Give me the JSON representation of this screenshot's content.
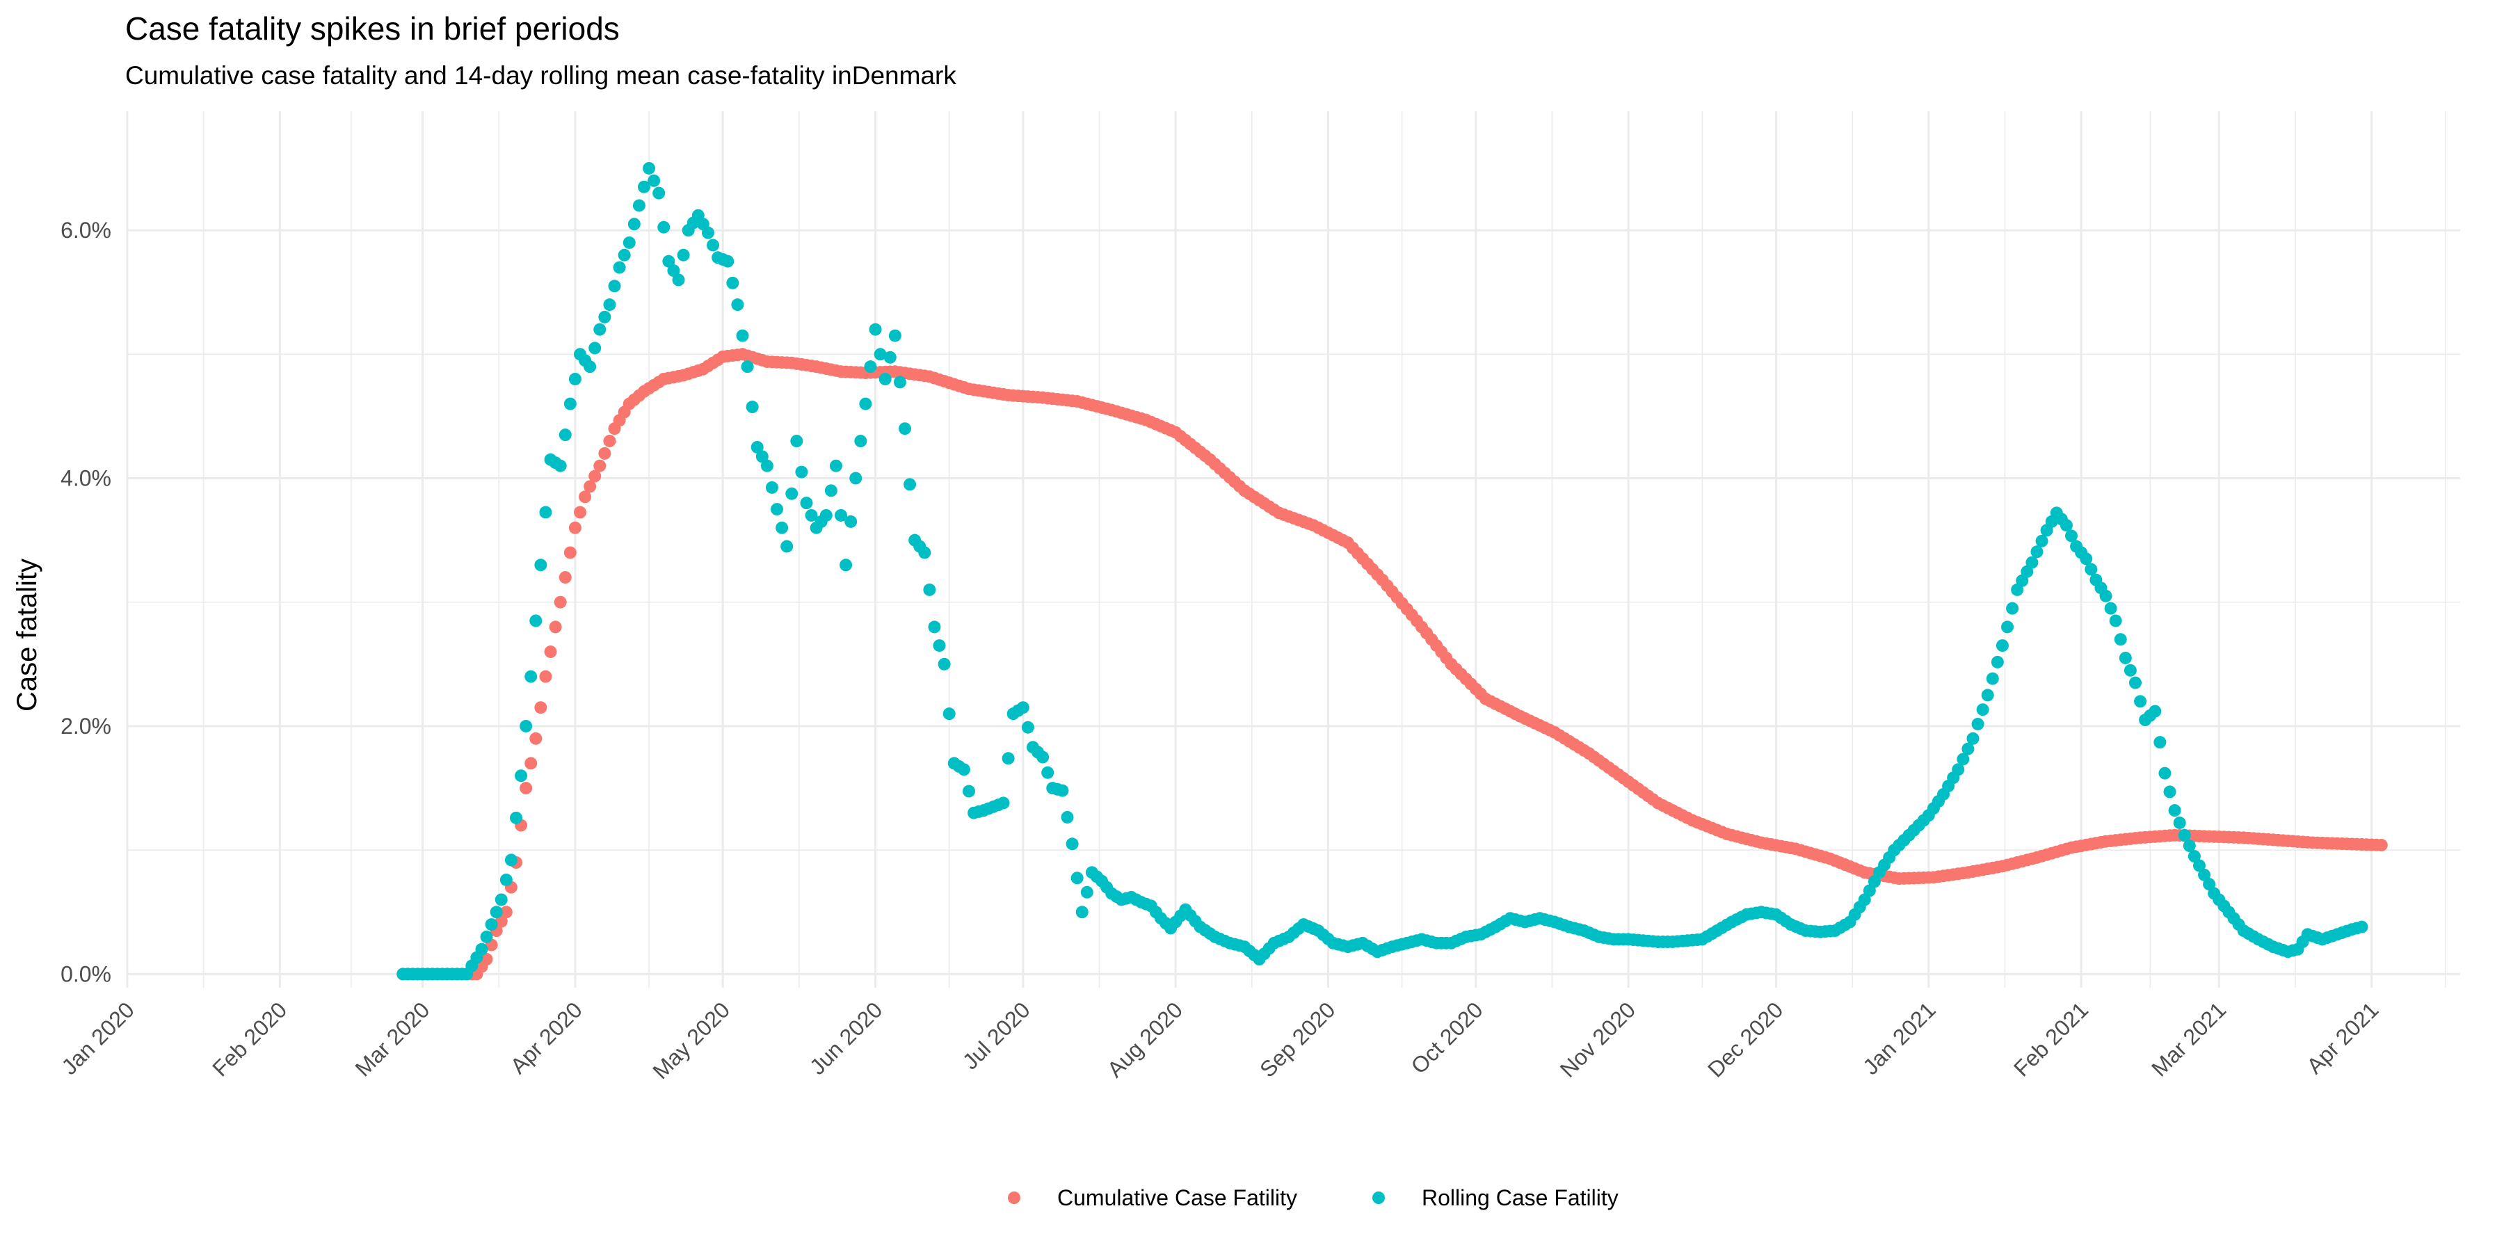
{
  "chart_data": {
    "type": "scatter",
    "title": "Case fatality spikes in brief periods",
    "subtitle": "Cumulative case fatality and 14-day rolling mean case-fatality inDenmark",
    "xlabel": "",
    "ylabel": "Case fatality",
    "xlim": [
      "2020-01-01",
      "2021-04-19"
    ],
    "ylim": [
      -0.0011,
      0.0696
    ],
    "x_ticks": [
      "2020-01-01",
      "2020-02-01",
      "2020-03-01",
      "2020-04-01",
      "2020-05-01",
      "2020-06-01",
      "2020-07-01",
      "2020-08-01",
      "2020-09-01",
      "2020-10-01",
      "2020-11-01",
      "2020-12-01",
      "2021-01-01",
      "2021-02-01",
      "2021-03-01",
      "2021-04-01"
    ],
    "x_tick_labels": [
      "Jan 2020",
      "Feb 2020",
      "Mar 2020",
      "Apr 2020",
      "May 2020",
      "Jun 2020",
      "Jul 2020",
      "Aug 2020",
      "Sep 2020",
      "Oct 2020",
      "Nov 2020",
      "Dec 2020",
      "Jan 2021",
      "Feb 2021",
      "Mar 2021",
      "Apr 2021"
    ],
    "y_ticks": [
      0,
      0.02,
      0.04,
      0.06
    ],
    "y_tick_labels": [
      "0.0%",
      "2.0%",
      "4.0%",
      "6.0%"
    ],
    "grid": true,
    "legend_position": "bottom",
    "colors": {
      "cumulative": "#F8766D",
      "rolling": "#00BFC4",
      "grid": "#ebebeb"
    },
    "series": [
      {
        "name": "Cumulative Case Fatility",
        "color": "#F8766D",
        "points": [
          [
            "2020-02-26",
            0
          ],
          [
            "2020-03-05",
            0
          ],
          [
            "2020-03-12",
            0
          ],
          [
            "2020-03-14",
            0.0012
          ],
          [
            "2020-03-16",
            0.0035
          ],
          [
            "2020-03-18",
            0.005
          ],
          [
            "2020-03-20",
            0.009
          ],
          [
            "2020-03-22",
            0.015
          ],
          [
            "2020-03-24",
            0.019
          ],
          [
            "2020-03-26",
            0.024
          ],
          [
            "2020-03-28",
            0.028
          ],
          [
            "2020-03-30",
            0.032
          ],
          [
            "2020-04-01",
            0.036
          ],
          [
            "2020-04-03",
            0.0385
          ],
          [
            "2020-04-06",
            0.041
          ],
          [
            "2020-04-09",
            0.044
          ],
          [
            "2020-04-12",
            0.046
          ],
          [
            "2020-04-15",
            0.047
          ],
          [
            "2020-04-19",
            0.048
          ],
          [
            "2020-04-23",
            0.0483
          ],
          [
            "2020-04-27",
            0.0488
          ],
          [
            "2020-05-01",
            0.0498
          ],
          [
            "2020-05-05",
            0.05
          ],
          [
            "2020-05-10",
            0.0494
          ],
          [
            "2020-05-15",
            0.0493
          ],
          [
            "2020-05-20",
            0.049
          ],
          [
            "2020-05-25",
            0.0486
          ],
          [
            "2020-05-30",
            0.0485
          ],
          [
            "2020-06-05",
            0.0486
          ],
          [
            "2020-06-12",
            0.0482
          ],
          [
            "2020-06-20",
            0.0472
          ],
          [
            "2020-06-28",
            0.0467
          ],
          [
            "2020-07-05",
            0.0465
          ],
          [
            "2020-07-12",
            0.0462
          ],
          [
            "2020-07-19",
            0.0455
          ],
          [
            "2020-07-26",
            0.0447
          ],
          [
            "2020-08-01",
            0.0437
          ],
          [
            "2020-08-08",
            0.0415
          ],
          [
            "2020-08-15",
            0.039
          ],
          [
            "2020-08-22",
            0.0372
          ],
          [
            "2020-08-29",
            0.0362
          ],
          [
            "2020-09-05",
            0.0348
          ],
          [
            "2020-09-12",
            0.0318
          ],
          [
            "2020-09-19",
            0.0285
          ],
          [
            "2020-09-26",
            0.025
          ],
          [
            "2020-10-03",
            0.0222
          ],
          [
            "2020-10-10",
            0.0208
          ],
          [
            "2020-10-17",
            0.0195
          ],
          [
            "2020-10-24",
            0.0178
          ],
          [
            "2020-10-31",
            0.0158
          ],
          [
            "2020-11-07",
            0.0138
          ],
          [
            "2020-11-14",
            0.0124
          ],
          [
            "2020-11-21",
            0.0113
          ],
          [
            "2020-11-28",
            0.0106
          ],
          [
            "2020-12-05",
            0.0101
          ],
          [
            "2020-12-12",
            0.0093
          ],
          [
            "2020-12-19",
            0.0082
          ],
          [
            "2020-12-26",
            0.0077
          ],
          [
            "2021-01-02",
            0.0078
          ],
          [
            "2021-01-09",
            0.0082
          ],
          [
            "2021-01-16",
            0.0087
          ],
          [
            "2021-01-23",
            0.0094
          ],
          [
            "2021-01-30",
            0.0102
          ],
          [
            "2021-02-06",
            0.0107
          ],
          [
            "2021-02-13",
            0.011
          ],
          [
            "2021-02-20",
            0.0112
          ],
          [
            "2021-02-27",
            0.0111
          ],
          [
            "2021-03-06",
            0.011
          ],
          [
            "2021-03-13",
            0.0108
          ],
          [
            "2021-03-20",
            0.0106
          ],
          [
            "2021-03-27",
            0.0105
          ],
          [
            "2021-04-03",
            0.0104
          ]
        ]
      },
      {
        "name": "Rolling Case Fatility",
        "color": "#00BFC4",
        "points": [
          [
            "2020-02-26",
            0
          ],
          [
            "2020-03-10",
            0
          ],
          [
            "2020-03-13",
            0.002
          ],
          [
            "2020-03-15",
            0.004
          ],
          [
            "2020-03-17",
            0.006
          ],
          [
            "2020-03-19",
            0.0092
          ],
          [
            "2020-03-21",
            0.016
          ],
          [
            "2020-03-23",
            0.024
          ],
          [
            "2020-03-25",
            0.033
          ],
          [
            "2020-03-27",
            0.0415
          ],
          [
            "2020-03-29",
            0.041
          ],
          [
            "2020-03-31",
            0.046
          ],
          [
            "2020-04-02",
            0.05
          ],
          [
            "2020-04-04",
            0.049
          ],
          [
            "2020-04-06",
            0.052
          ],
          [
            "2020-04-08",
            0.054
          ],
          [
            "2020-04-10",
            0.057
          ],
          [
            "2020-04-12",
            0.059
          ],
          [
            "2020-04-14",
            0.062
          ],
          [
            "2020-04-16",
            0.065
          ],
          [
            "2020-04-18",
            0.063
          ],
          [
            "2020-04-20",
            0.0575
          ],
          [
            "2020-04-22",
            0.056
          ],
          [
            "2020-04-24",
            0.06
          ],
          [
            "2020-04-26",
            0.0612
          ],
          [
            "2020-04-28",
            0.0598
          ],
          [
            "2020-04-30",
            0.0578
          ],
          [
            "2020-05-02",
            0.0575
          ],
          [
            "2020-05-04",
            0.054
          ],
          [
            "2020-05-06",
            0.049
          ],
          [
            "2020-05-08",
            0.0425
          ],
          [
            "2020-05-10",
            0.041
          ],
          [
            "2020-05-12",
            0.0375
          ],
          [
            "2020-05-14",
            0.0345
          ],
          [
            "2020-05-16",
            0.043
          ],
          [
            "2020-05-18",
            0.038
          ],
          [
            "2020-05-20",
            0.036
          ],
          [
            "2020-05-22",
            0.037
          ],
          [
            "2020-05-24",
            0.041
          ],
          [
            "2020-05-26",
            0.033
          ],
          [
            "2020-05-28",
            0.04
          ],
          [
            "2020-05-30",
            0.046
          ],
          [
            "2020-06-01",
            0.052
          ],
          [
            "2020-06-03",
            0.048
          ],
          [
            "2020-06-05",
            0.0515
          ],
          [
            "2020-06-07",
            0.044
          ],
          [
            "2020-06-09",
            0.035
          ],
          [
            "2020-06-11",
            0.034
          ],
          [
            "2020-06-13",
            0.028
          ],
          [
            "2020-06-15",
            0.025
          ],
          [
            "2020-06-17",
            0.017
          ],
          [
            "2020-06-19",
            0.0165
          ],
          [
            "2020-06-21",
            0.013
          ],
          [
            "2020-06-23",
            0.0132
          ],
          [
            "2020-06-25",
            0.0135
          ],
          [
            "2020-06-27",
            0.0138
          ],
          [
            "2020-06-29",
            0.021
          ],
          [
            "2020-07-01",
            0.0215
          ],
          [
            "2020-07-03",
            0.0183
          ],
          [
            "2020-07-05",
            0.0175
          ],
          [
            "2020-07-07",
            0.015
          ],
          [
            "2020-07-09",
            0.0148
          ],
          [
            "2020-07-11",
            0.0105
          ],
          [
            "2020-07-13",
            0.005
          ],
          [
            "2020-07-15",
            0.0082
          ],
          [
            "2020-07-17",
            0.0075
          ],
          [
            "2020-07-19",
            0.0065
          ],
          [
            "2020-07-21",
            0.006
          ],
          [
            "2020-07-23",
            0.0062
          ],
          [
            "2020-07-25",
            0.0058
          ],
          [
            "2020-07-27",
            0.0055
          ],
          [
            "2020-07-29",
            0.0045
          ],
          [
            "2020-07-31",
            0.0037
          ],
          [
            "2020-08-03",
            0.0052
          ],
          [
            "2020-08-06",
            0.0038
          ],
          [
            "2020-08-09",
            0.003
          ],
          [
            "2020-08-12",
            0.0025
          ],
          [
            "2020-08-15",
            0.0022
          ],
          [
            "2020-08-18",
            0.0012
          ],
          [
            "2020-08-21",
            0.0025
          ],
          [
            "2020-08-24",
            0.003
          ],
          [
            "2020-08-27",
            0.004
          ],
          [
            "2020-08-30",
            0.0035
          ],
          [
            "2020-09-02",
            0.0025
          ],
          [
            "2020-09-05",
            0.0022
          ],
          [
            "2020-09-08",
            0.0025
          ],
          [
            "2020-09-11",
            0.0018
          ],
          [
            "2020-09-14",
            0.0022
          ],
          [
            "2020-09-17",
            0.0025
          ],
          [
            "2020-09-20",
            0.0028
          ],
          [
            "2020-09-23",
            0.0025
          ],
          [
            "2020-09-26",
            0.0025
          ],
          [
            "2020-09-29",
            0.003
          ],
          [
            "2020-10-02",
            0.0032
          ],
          [
            "2020-10-05",
            0.0038
          ],
          [
            "2020-10-08",
            0.0045
          ],
          [
            "2020-10-11",
            0.0042
          ],
          [
            "2020-10-14",
            0.0045
          ],
          [
            "2020-10-17",
            0.0042
          ],
          [
            "2020-10-20",
            0.0038
          ],
          [
            "2020-10-23",
            0.0035
          ],
          [
            "2020-10-26",
            0.003
          ],
          [
            "2020-10-29",
            0.0028
          ],
          [
            "2020-11-01",
            0.0028
          ],
          [
            "2020-11-04",
            0.0027
          ],
          [
            "2020-11-07",
            0.0026
          ],
          [
            "2020-11-10",
            0.0026
          ],
          [
            "2020-11-13",
            0.0027
          ],
          [
            "2020-11-16",
            0.0028
          ],
          [
            "2020-11-19",
            0.0035
          ],
          [
            "2020-11-22",
            0.0042
          ],
          [
            "2020-11-25",
            0.0048
          ],
          [
            "2020-11-28",
            0.005
          ],
          [
            "2020-12-01",
            0.0048
          ],
          [
            "2020-12-04",
            0.004
          ],
          [
            "2020-12-07",
            0.0035
          ],
          [
            "2020-12-10",
            0.0034
          ],
          [
            "2020-12-13",
            0.0035
          ],
          [
            "2020-12-16",
            0.0042
          ],
          [
            "2020-12-19",
            0.006
          ],
          [
            "2020-12-22",
            0.0082
          ],
          [
            "2020-12-25",
            0.01
          ],
          [
            "2020-12-28",
            0.0112
          ],
          [
            "2021-01-01",
            0.0128
          ],
          [
            "2021-01-04",
            0.0145
          ],
          [
            "2021-01-07",
            0.0165
          ],
          [
            "2021-01-10",
            0.019
          ],
          [
            "2021-01-13",
            0.0225
          ],
          [
            "2021-01-16",
            0.0265
          ],
          [
            "2021-01-19",
            0.031
          ],
          [
            "2021-01-22",
            0.0332
          ],
          [
            "2021-01-25",
            0.0358
          ],
          [
            "2021-01-27",
            0.0372
          ],
          [
            "2021-01-29",
            0.0362
          ],
          [
            "2021-01-31",
            0.0345
          ],
          [
            "2021-02-02",
            0.0335
          ],
          [
            "2021-02-04",
            0.0318
          ],
          [
            "2021-02-06",
            0.0305
          ],
          [
            "2021-02-08",
            0.0285
          ],
          [
            "2021-02-10",
            0.0255
          ],
          [
            "2021-02-12",
            0.0235
          ],
          [
            "2021-02-14",
            0.0205
          ],
          [
            "2021-02-16",
            0.0212
          ],
          [
            "2021-02-18",
            0.0162
          ],
          [
            "2021-02-20",
            0.0132
          ],
          [
            "2021-02-22",
            0.0112
          ],
          [
            "2021-02-24",
            0.0095
          ],
          [
            "2021-02-26",
            0.008
          ],
          [
            "2021-02-28",
            0.0065
          ],
          [
            "2021-03-02",
            0.0055
          ],
          [
            "2021-03-04",
            0.0045
          ],
          [
            "2021-03-06",
            0.0035
          ],
          [
            "2021-03-09",
            0.0028
          ],
          [
            "2021-03-12",
            0.0022
          ],
          [
            "2021-03-15",
            0.0018
          ],
          [
            "2021-03-17",
            0.002
          ],
          [
            "2021-03-19",
            0.0032
          ],
          [
            "2021-03-22",
            0.0028
          ],
          [
            "2021-03-25",
            0.0032
          ],
          [
            "2021-03-28",
            0.0036
          ],
          [
            "2021-03-30",
            0.0038
          ]
        ]
      }
    ]
  }
}
